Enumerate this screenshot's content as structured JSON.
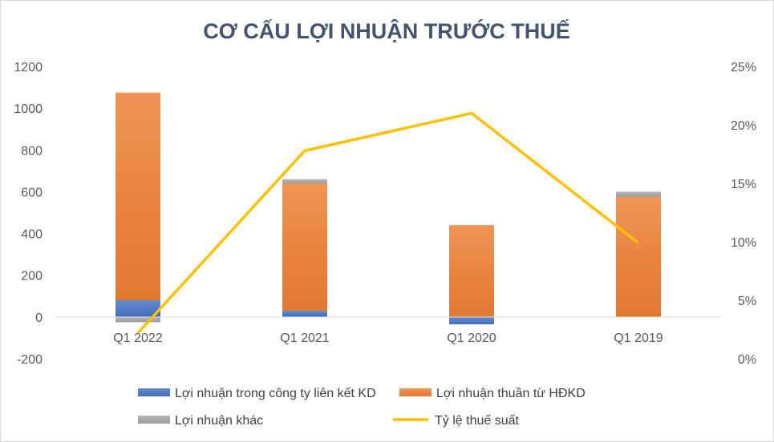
{
  "chart_data": {
    "type": "bar",
    "title": "CƠ CẤU LỢI NHUẬN TRƯỚC THUẾ",
    "categories": [
      "Q1 2022",
      "Q1 2021",
      "Q1 2020",
      "Q1 2019"
    ],
    "series": [
      {
        "name": "Lợi nhuận trong công ty liên kết KD",
        "type": "stacked-bar",
        "axis": "left",
        "color": "#4472c4",
        "values": [
          80,
          30,
          -35,
          0
        ]
      },
      {
        "name": "Lợi nhuận thuần từ HĐKD",
        "type": "stacked-bar",
        "axis": "left",
        "color": "#ed7d31",
        "values": [
          995,
          610,
          440,
          575
        ]
      },
      {
        "name": "Lợi nhuận khác",
        "type": "stacked-bar",
        "axis": "left",
        "color": "#a5a5a5",
        "values": [
          -25,
          20,
          0,
          25
        ]
      },
      {
        "name": "Tỷ lệ thuế suất",
        "type": "line",
        "axis": "right",
        "color": "#ffc000",
        "values": [
          0.022,
          0.178,
          0.21,
          0.099
        ]
      }
    ],
    "y_left": {
      "range": [
        -200,
        1200
      ],
      "ticks": [
        "-200",
        "0",
        "200",
        "400",
        "600",
        "800",
        "1000",
        "1200"
      ]
    },
    "y_right": {
      "range": [
        0,
        0.25
      ],
      "ticks": [
        "0%",
        "5%",
        "10%",
        "15%",
        "20%",
        "25%"
      ]
    },
    "grid": false,
    "legend_position": "bottom"
  }
}
